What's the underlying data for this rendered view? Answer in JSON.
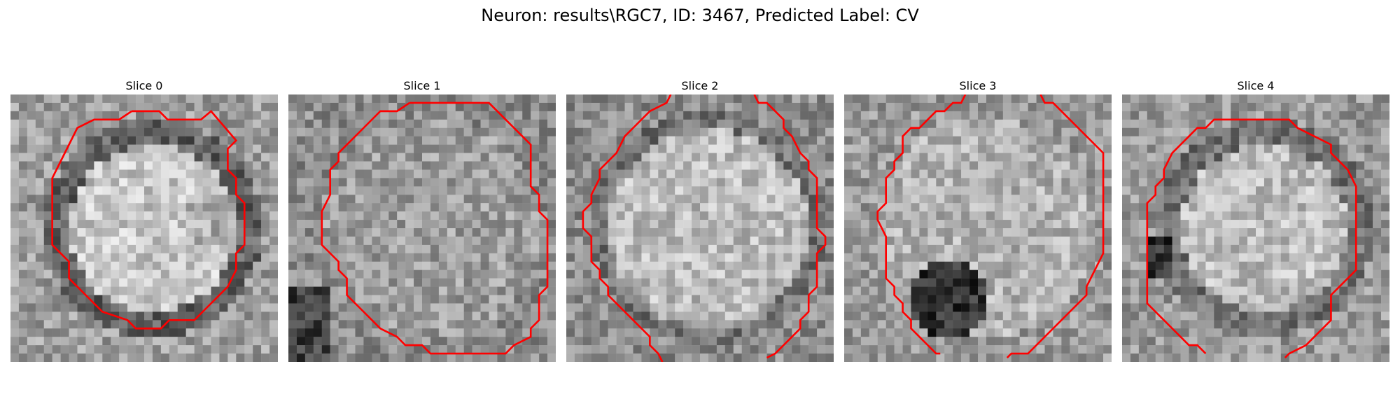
{
  "figure": {
    "title": "Neuron: results\\RGC7, ID: 3467, Predicted Label: CV"
  },
  "slices": [
    {
      "label": "Slice 0"
    },
    {
      "label": "Slice 1"
    },
    {
      "label": "Slice 2"
    },
    {
      "label": "Slice 3"
    },
    {
      "label": "Slice 4"
    }
  ],
  "colors": {
    "contour": "#ff0000",
    "background": "#ffffff"
  },
  "colormap": "grayscale"
}
